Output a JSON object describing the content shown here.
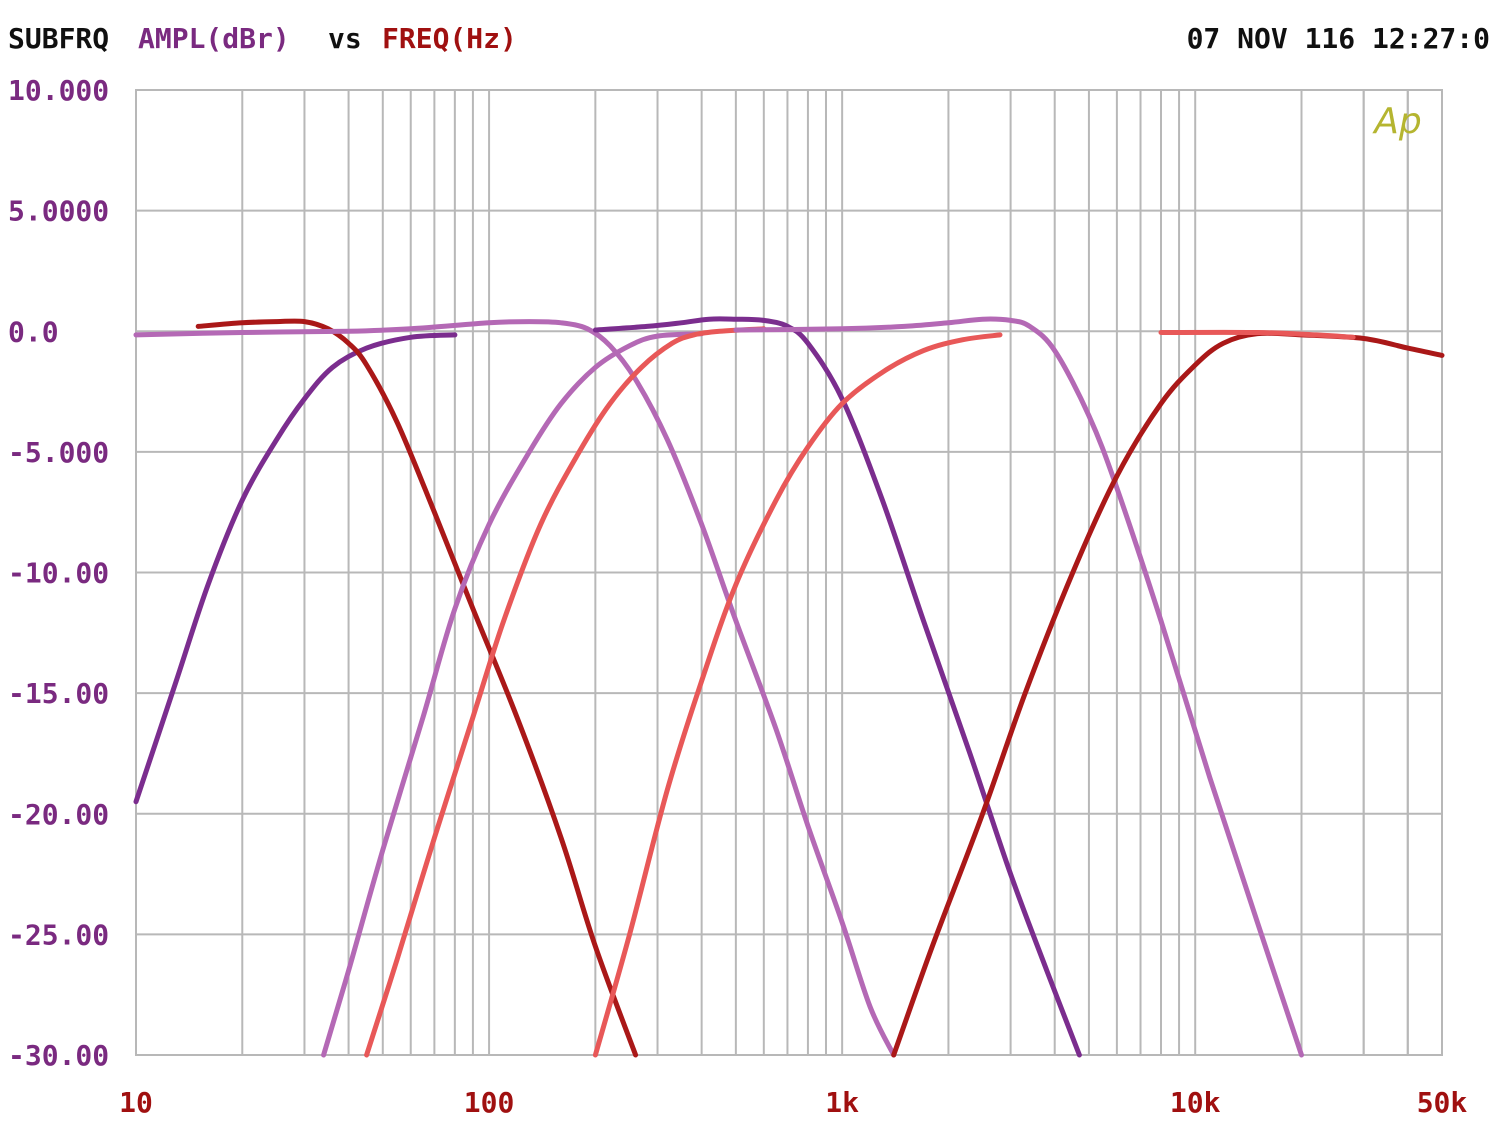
{
  "header": {
    "prefix": "SUBFRQ",
    "y_label": "AMPL(dBr)",
    "vs": "vs",
    "x_label": "FREQ(Hz)",
    "timestamp": "07 NOV 116 12:27:0"
  },
  "watermark": "Ap",
  "colors": {
    "background": "#ffffff",
    "grid": "#b8b8b8",
    "axis_text_y": "#7a2a80",
    "axis_text_x": "#a01010",
    "header_text": "#101010",
    "watermark": "#b5b530"
  },
  "chart_data": {
    "type": "line",
    "title": "",
    "xlabel": "FREQ(Hz)",
    "ylabel": "AMPL(dBr)",
    "x_scale": "log",
    "xlim": [
      10,
      50000
    ],
    "ylim": [
      -30,
      10
    ],
    "grid": true,
    "legend": "none",
    "x_tick_labels": [
      {
        "value": 10,
        "label": "10"
      },
      {
        "value": 100,
        "label": "100"
      },
      {
        "value": 1000,
        "label": "1k"
      },
      {
        "value": 10000,
        "label": "10k"
      },
      {
        "value": 50000,
        "label": "50k"
      }
    ],
    "y_tick_labels": [
      {
        "value": 10,
        "label": "10.000"
      },
      {
        "value": 5,
        "label": "5.0000"
      },
      {
        "value": 0,
        "label": "0.0"
      },
      {
        "value": -5,
        "label": "-5.000"
      },
      {
        "value": -10,
        "label": "-10.00"
      },
      {
        "value": -15,
        "label": "-15.00"
      },
      {
        "value": -20,
        "label": "-20.00"
      },
      {
        "value": -25,
        "label": "-25.00"
      },
      {
        "value": -30,
        "label": "-30.00"
      }
    ],
    "series": [
      {
        "color": "#7b2d8e",
        "points": [
          [
            10,
            -19.5
          ],
          [
            13,
            -14.5
          ],
          [
            16,
            -10.5
          ],
          [
            20,
            -7
          ],
          [
            25,
            -4.5
          ],
          [
            30,
            -2.8
          ],
          [
            36,
            -1.5
          ],
          [
            45,
            -0.7
          ],
          [
            60,
            -0.25
          ],
          [
            80,
            -0.15
          ]
        ]
      },
      {
        "color": "#aa1818",
        "points": [
          [
            15,
            0.2
          ],
          [
            20,
            0.35
          ],
          [
            25,
            0.4
          ],
          [
            30,
            0.4
          ],
          [
            35,
            0.1
          ],
          [
            40,
            -0.5
          ],
          [
            45,
            -1.4
          ],
          [
            55,
            -3.8
          ],
          [
            70,
            -7.5
          ],
          [
            90,
            -11.5
          ],
          [
            120,
            -16
          ],
          [
            160,
            -21
          ],
          [
            200,
            -25.5
          ],
          [
            260,
            -30
          ]
        ]
      },
      {
        "color": "#b469b5",
        "points": [
          [
            10,
            -0.15
          ],
          [
            20,
            -0.05
          ],
          [
            40,
            0
          ],
          [
            60,
            0.1
          ],
          [
            100,
            0.35
          ],
          [
            130,
            0.4
          ],
          [
            160,
            0.35
          ],
          [
            190,
            0.1
          ],
          [
            220,
            -0.6
          ],
          [
            260,
            -2
          ],
          [
            320,
            -4.5
          ],
          [
            400,
            -8
          ],
          [
            500,
            -12
          ],
          [
            650,
            -16.5
          ],
          [
            800,
            -20.5
          ],
          [
            1000,
            -24.5
          ],
          [
            1200,
            -28
          ],
          [
            1400,
            -30
          ]
        ]
      },
      {
        "color": "#b469b5",
        "points": [
          [
            34,
            -30
          ],
          [
            40,
            -26.5
          ],
          [
            50,
            -21.5
          ],
          [
            65,
            -16
          ],
          [
            80,
            -11.5
          ],
          [
            100,
            -8
          ],
          [
            130,
            -5
          ],
          [
            160,
            -3
          ],
          [
            200,
            -1.5
          ],
          [
            250,
            -0.6
          ],
          [
            300,
            -0.2
          ],
          [
            400,
            -0.1
          ]
        ]
      },
      {
        "color": "#e85858",
        "points": [
          [
            45,
            -30
          ],
          [
            55,
            -26
          ],
          [
            70,
            -21
          ],
          [
            90,
            -16
          ],
          [
            110,
            -12
          ],
          [
            140,
            -8
          ],
          [
            180,
            -5
          ],
          [
            220,
            -3
          ],
          [
            270,
            -1.5
          ],
          [
            330,
            -0.5
          ],
          [
            380,
            -0.15
          ],
          [
            450,
            0
          ],
          [
            600,
            0.1
          ]
        ]
      },
      {
        "color": "#7b2d8e",
        "points": [
          [
            200,
            0.05
          ],
          [
            280,
            0.2
          ],
          [
            350,
            0.35
          ],
          [
            420,
            0.5
          ],
          [
            500,
            0.5
          ],
          [
            600,
            0.45
          ],
          [
            700,
            0.2
          ],
          [
            800,
            -0.5
          ],
          [
            1000,
            -2.8
          ],
          [
            1300,
            -7
          ],
          [
            1700,
            -12
          ],
          [
            2300,
            -17.5
          ],
          [
            3000,
            -22.5
          ],
          [
            3800,
            -26.5
          ],
          [
            4700,
            -30
          ]
        ]
      },
      {
        "color": "#e85858",
        "points": [
          [
            200,
            -30
          ],
          [
            250,
            -25
          ],
          [
            320,
            -19
          ],
          [
            400,
            -14.5
          ],
          [
            500,
            -10.5
          ],
          [
            650,
            -7
          ],
          [
            800,
            -4.8
          ],
          [
            1000,
            -3
          ],
          [
            1300,
            -1.7
          ],
          [
            1700,
            -0.8
          ],
          [
            2200,
            -0.35
          ],
          [
            2800,
            -0.15
          ]
        ]
      },
      {
        "color": "#b469b5",
        "points": [
          [
            500,
            0.05
          ],
          [
            1000,
            0.1
          ],
          [
            1500,
            0.2
          ],
          [
            2000,
            0.35
          ],
          [
            2500,
            0.5
          ],
          [
            3000,
            0.45
          ],
          [
            3400,
            0.2
          ],
          [
            4000,
            -0.8
          ],
          [
            5000,
            -3.5
          ],
          [
            6000,
            -6.5
          ],
          [
            8000,
            -12
          ],
          [
            11000,
            -18.5
          ],
          [
            15000,
            -24.5
          ],
          [
            20000,
            -30
          ]
        ]
      },
      {
        "color": "#aa1818",
        "points": [
          [
            1400,
            -30
          ],
          [
            1800,
            -25.5
          ],
          [
            2500,
            -20
          ],
          [
            3300,
            -15
          ],
          [
            4500,
            -10
          ],
          [
            6000,
            -6
          ],
          [
            8000,
            -3
          ],
          [
            10000,
            -1.4
          ],
          [
            12000,
            -0.5
          ],
          [
            15000,
            -0.1
          ],
          [
            20000,
            -0.15
          ],
          [
            30000,
            -0.3
          ],
          [
            40000,
            -0.7
          ],
          [
            50000,
            -1
          ]
        ]
      },
      {
        "color": "#e85858",
        "points": [
          [
            8000,
            -0.05
          ],
          [
            15000,
            -0.05
          ],
          [
            22000,
            -0.15
          ],
          [
            28000,
            -0.25
          ]
        ]
      }
    ]
  }
}
